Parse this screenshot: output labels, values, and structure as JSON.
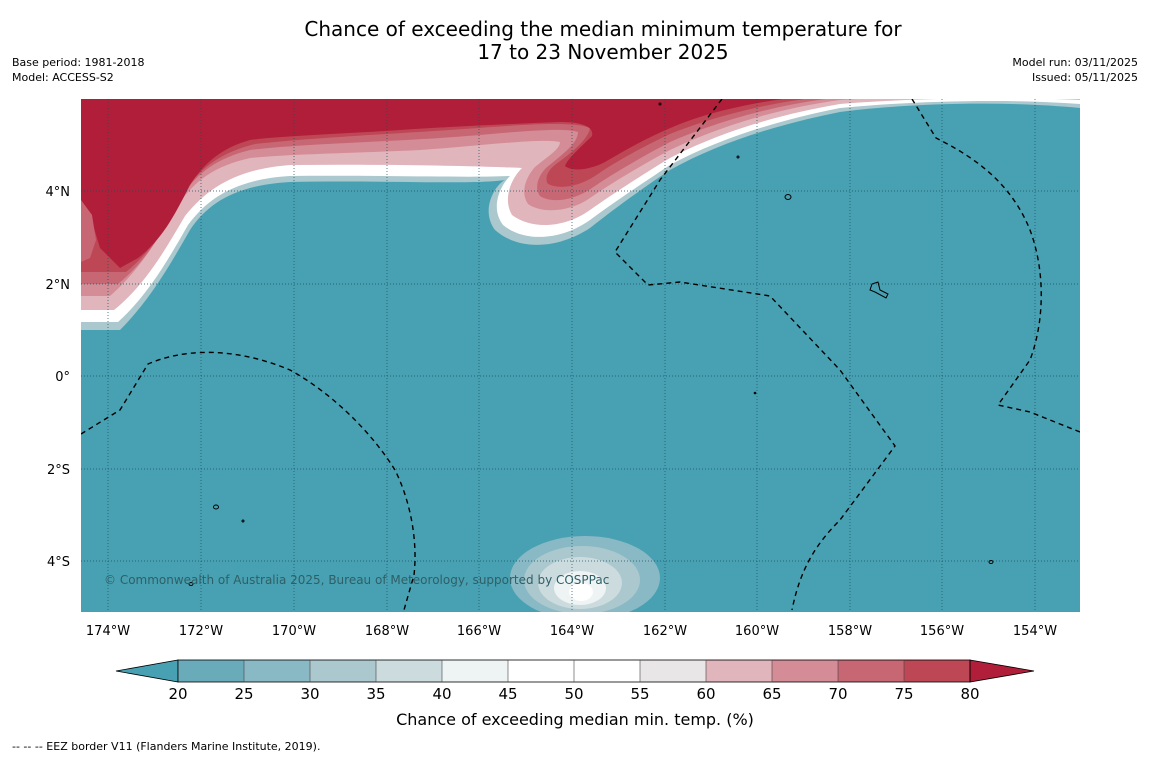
{
  "title": {
    "line1": "Chance of exceeding the median minimum temperature for",
    "line2": "17 to 23 November 2025"
  },
  "meta": {
    "base_period": "Base period: 1981-2018",
    "model": "Model: ACCESS-S2",
    "model_run": "Model run: 03/11/2025",
    "issued": "Issued: 05/11/2025"
  },
  "map": {
    "lon_labels": [
      "174°W",
      "172°W",
      "170°W",
      "168°W",
      "166°W",
      "164°W",
      "162°W",
      "160°W",
      "158°W",
      "156°W",
      "154°W"
    ],
    "lat_labels": [
      "4°N",
      "2°N",
      "0°",
      "2°S",
      "4°S"
    ],
    "copyright": "© Commonwealth of Australia 2025, Bureau of Meteorology, supported by COSPPac",
    "colors": {
      "ocean_base": "#48a1b2",
      "warm_high": "#b11e3a",
      "grid": "#1b4f5d",
      "eez_line": "#000000"
    }
  },
  "colorbar": {
    "ticks": [
      "20",
      "25",
      "30",
      "35",
      "40",
      "45",
      "50",
      "55",
      "60",
      "65",
      "70",
      "75",
      "80"
    ],
    "segment_colors": [
      "#48a1b2",
      "#6aabb9",
      "#89b9c4",
      "#aac8cd",
      "#ccdbde",
      "#eef3f4",
      "#ffffff",
      "#ffffff",
      "#e8e6e6",
      "#e0b5bc",
      "#d48c97",
      "#c86774",
      "#be4756",
      "#b11e3a"
    ],
    "label": "Chance of exceeding median min. temp. (%)"
  },
  "footnote": "--  --  -- EEZ border V11 (Flanders Marine Institute, 2019)."
}
